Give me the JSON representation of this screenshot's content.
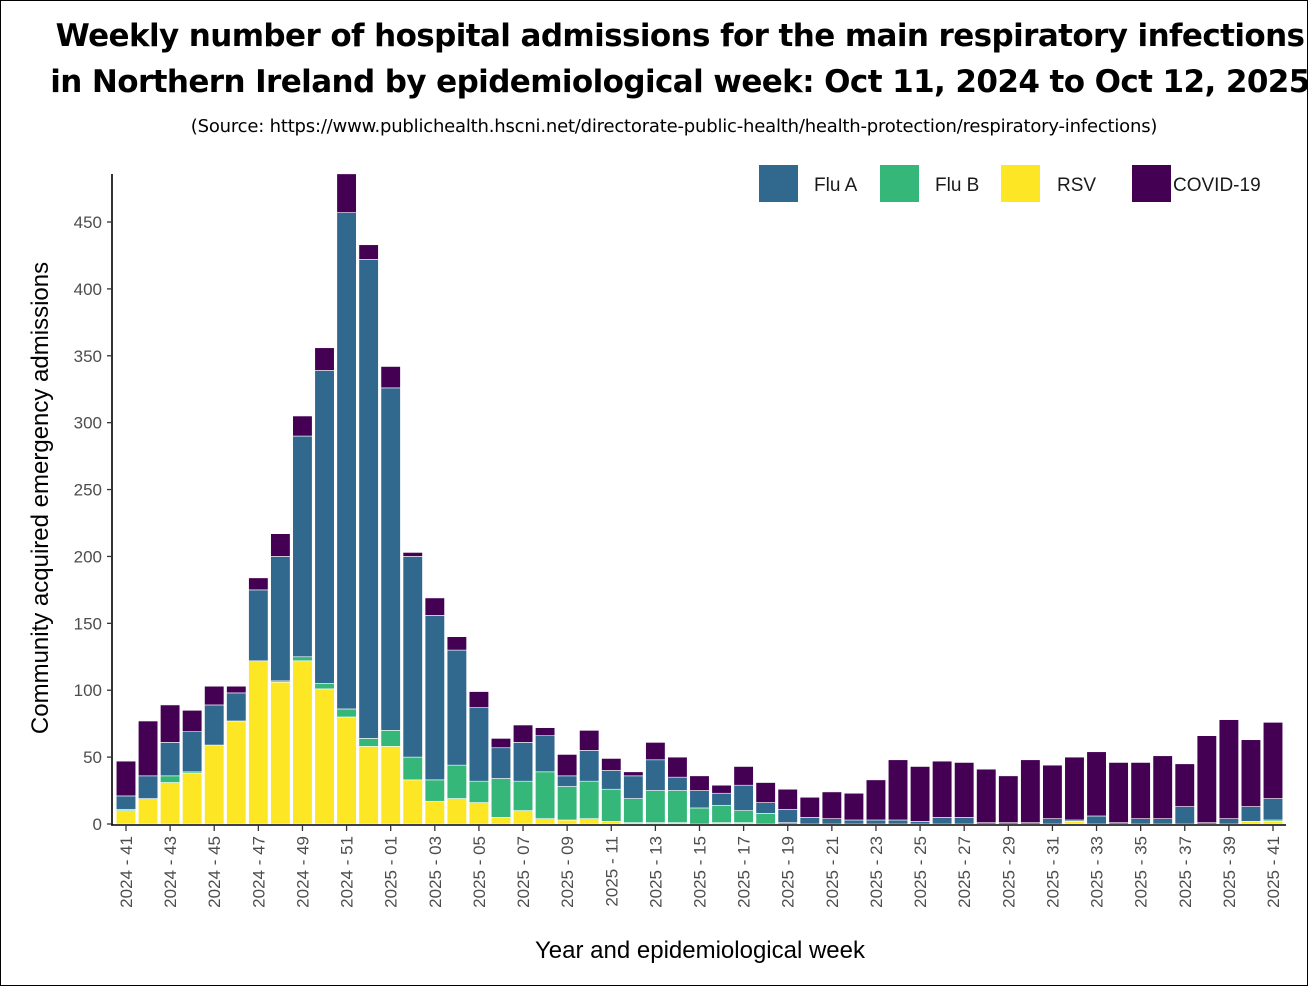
{
  "title_line1": "Weekly number of hospital admissions for the main respiratory infections",
  "title_line2": "in Northern Ireland by epidemiological week: Oct 11, 2024 to Oct 12, 2025",
  "source": "(Source: https://www.publichealth.hscni.net/directorate-public-health/health-protection/respiratory-infections)",
  "chart_data": {
    "type": "bar",
    "stacked": true,
    "title": "Weekly number of hospital admissions for the main respiratory infections in Northern Ireland by epidemiological week: Oct 11, 2024 to Oct 12, 2025",
    "xlabel": "Year and epidemiological week",
    "ylabel": "Community acquired emergency admissions",
    "ylim": [
      0,
      485
    ],
    "yticks": [
      0,
      50,
      100,
      150,
      200,
      250,
      300,
      350,
      400,
      450
    ],
    "legend_position": "top-right",
    "grid": false,
    "categories": [
      "2024 - 41",
      "2024 - 42",
      "2024 - 43",
      "2024 - 44",
      "2024 - 45",
      "2024 - 46",
      "2024 - 47",
      "2024 - 48",
      "2024 - 49",
      "2024 - 50",
      "2024 - 51",
      "2024 - 52",
      "2025 - 01",
      "2025 - 02",
      "2025 - 03",
      "2025 - 04",
      "2025 - 05",
      "2025 - 06",
      "2025 - 07",
      "2025 - 08",
      "2025 - 09",
      "2025 - 10",
      "2025 - 11",
      "2025 - 12",
      "2025 - 13",
      "2025 - 14",
      "2025 - 15",
      "2025 - 16",
      "2025 - 17",
      "2025 - 18",
      "2025 - 19",
      "2025 - 20",
      "2025 - 21",
      "2025 - 22",
      "2025 - 23",
      "2025 - 24",
      "2025 - 25",
      "2025 - 26",
      "2025 - 27",
      "2025 - 28",
      "2025 - 29",
      "2025 - 30",
      "2025 - 31",
      "2025 - 32",
      "2025 - 33",
      "2025 - 34",
      "2025 - 35",
      "2025 - 36",
      "2025 - 37",
      "2025 - 38",
      "2025 - 39",
      "2025 - 40",
      "2025 - 41"
    ],
    "label_every": 2,
    "series": [
      {
        "name": "RSV",
        "color": "#FDE725",
        "values": [
          10,
          19,
          31,
          38,
          59,
          77,
          122,
          106,
          122,
          101,
          80,
          58,
          58,
          33,
          17,
          19,
          16,
          5,
          10,
          4,
          3,
          4,
          2,
          1,
          1,
          1,
          0,
          1,
          1,
          0,
          0,
          0,
          0,
          0,
          0,
          0,
          0,
          0,
          0,
          0,
          0,
          0,
          0,
          2,
          0,
          0,
          0,
          0,
          0,
          0,
          0,
          2,
          2
        ]
      },
      {
        "name": "Flu B",
        "color": "#35B779",
        "values": [
          1,
          0,
          5,
          1,
          0,
          0,
          0,
          1,
          3,
          4,
          6,
          6,
          12,
          17,
          16,
          25,
          16,
          29,
          22,
          35,
          25,
          28,
          24,
          18,
          24,
          24,
          12,
          13,
          9,
          8,
          1,
          0,
          0,
          0,
          0,
          0,
          0,
          0,
          0,
          0,
          0,
          0,
          0,
          0,
          0,
          0,
          0,
          0,
          0,
          0,
          0,
          0,
          1
        ]
      },
      {
        "name": "Flu A",
        "color": "#31688E",
        "values": [
          10,
          17,
          25,
          30,
          30,
          21,
          53,
          93,
          165,
          234,
          371,
          358,
          256,
          150,
          123,
          86,
          55,
          23,
          29,
          27,
          8,
          23,
          14,
          17,
          23,
          10,
          13,
          9,
          19,
          8,
          10,
          5,
          4,
          3,
          3,
          3,
          2,
          5,
          5,
          1,
          1,
          1,
          4,
          1,
          6,
          1,
          4,
          4,
          13,
          1,
          4,
          11,
          16
        ]
      },
      {
        "name": "COVID-19",
        "color": "#440154",
        "values": [
          26,
          41,
          28,
          16,
          14,
          5,
          9,
          17,
          15,
          17,
          29,
          11,
          16,
          3,
          13,
          10,
          12,
          7,
          13,
          6,
          16,
          15,
          9,
          3,
          13,
          15,
          11,
          6,
          14,
          15,
          15,
          15,
          20,
          20,
          30,
          45,
          41,
          42,
          41,
          40,
          35,
          47,
          40,
          47,
          48,
          45,
          42,
          47,
          32,
          65,
          74,
          50,
          57
        ]
      }
    ]
  }
}
